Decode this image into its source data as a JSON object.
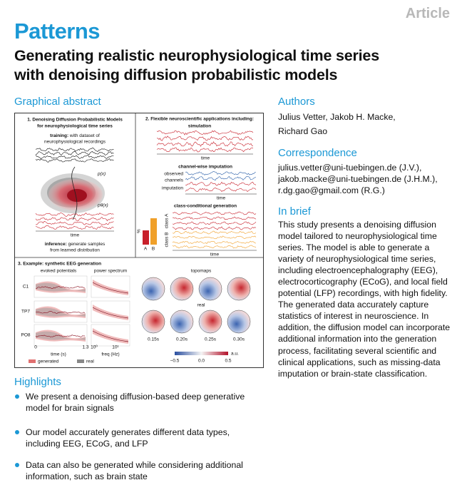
{
  "header": {
    "label": "Article",
    "journal": "Patterns",
    "title_lines": [
      "Generating realistic neurophysiological time series",
      "with denoising diffusion probabilistic models"
    ]
  },
  "graphical_abstract": {
    "heading": "Graphical abstract",
    "panel1": {
      "title_lines": [
        "1. Denoising Diffusion Probabilistic Models",
        "for neurophysiological time series"
      ],
      "training_bold": "training:",
      "training_rest": " with dataset of",
      "training_line2": "neurophysiological recordings",
      "px": "p(x)",
      "ptheta": "pθ(x)",
      "time": "time",
      "inference_bold": "inference:",
      "inference_rest": " generate samples",
      "inference_line2": "from learned distribution"
    },
    "panel2": {
      "title": "2. Flexible neuroscientific applications including:",
      "simulation": "simulation",
      "time": "time",
      "imputation_title": "channel-wise imputation",
      "observed": "observed",
      "channels": "channels",
      "imputation": "imputation",
      "class_title": "class-conditional generation",
      "percent": "%",
      "bar_a": "A",
      "bar_b": "B",
      "class_a": "class A",
      "class_b": "class B"
    },
    "panel3": {
      "title": "3. Example: synthetic EEG generation",
      "evoked": "evoked potentials",
      "power": "power spectrum",
      "topomaps": "topomaps",
      "channels": [
        "C1",
        "TP7",
        "PO8"
      ],
      "time_start": "0",
      "time_end": "1.3",
      "time_label": "time (s)",
      "freq_ticks": [
        "10⁰",
        "10¹"
      ],
      "freq_label": "freq (Hz)",
      "real": "real",
      "times": [
        "0.15s",
        "0.20s",
        "0.25s",
        "0.30s"
      ],
      "colorbar_ticks": [
        "−0.5",
        "0.0",
        "0.5"
      ],
      "colorbar_unit": "a.u.",
      "legend": [
        "generated",
        "real"
      ]
    }
  },
  "highlights": {
    "heading": "Highlights",
    "items": [
      "We present a denoising diffusion-based deep generative model for brain signals",
      "Our model accurately generates different data types, including EEG, ECoG, and LFP",
      "Data can also be generated while considering additional information, such as brain state"
    ]
  },
  "authors": {
    "heading": "Authors",
    "lines": [
      "Julius Vetter, Jakob H. Macke,",
      "Richard Gao"
    ]
  },
  "correspondence": {
    "heading": "Correspondence",
    "lines": [
      "julius.vetter@uni-tuebingen.de (J.V.),",
      "jakob.macke@uni-tuebingen.de (J.H.M.),",
      "r.dg.gao@gmail.com (R.G.)"
    ]
  },
  "in_brief": {
    "heading": "In brief",
    "text": "This study presents a denoising diffusion model tailored to neurophysiological time series. The model is able to generate a variety of neurophysiological time series, including electroencephalography (EEG), electrocorticography (ECoG), and local field potential (LFP) recordings, with high fidelity. The generated data accurately capture statistics of interest in neuroscience. In addition, the diffusion model can incorporate additional information into the generation process, facilitating several scientific and clinical applications, such as missing-data imputation or brain-state classification."
  }
}
